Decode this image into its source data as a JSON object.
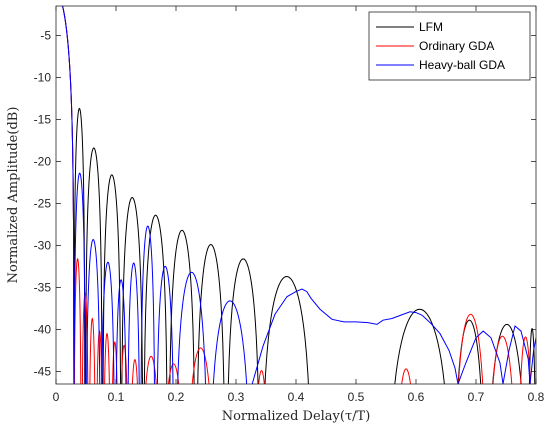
{
  "chart_data": {
    "type": "line",
    "title": "",
    "xlabel": "Normalized Delay(τ/T)",
    "ylabel": "Normalized Amplitude(dB)",
    "xlim": [
      0,
      0.8
    ],
    "ylim": [
      -46.5,
      -1.5
    ],
    "xticks": [
      0,
      0.1,
      0.2,
      0.3,
      0.4,
      0.5,
      0.6,
      0.7,
      0.8
    ],
    "xtick_labels": [
      "0",
      "0.1",
      "0.2",
      "0.3",
      "0.4",
      "0.5",
      "0.6",
      "0.7",
      "0.8"
    ],
    "yticks": [
      -5,
      -10,
      -15,
      -20,
      -25,
      -30,
      -35,
      -40,
      -45
    ],
    "ytick_labels": [
      "-5",
      "-10",
      "-15",
      "-20",
      "-25",
      "-30",
      "-35",
      "-40",
      "-45"
    ],
    "grid": false,
    "legend_position": "top-right",
    "series": [
      {
        "name": "LFM",
        "color": "#000000",
        "lobes": [
          [
            0.0,
            0.03,
            0
          ],
          [
            0.03,
            0.048,
            -13.7
          ],
          [
            0.049,
            0.077,
            -18.4
          ],
          [
            0.078,
            0.108,
            -21.6
          ],
          [
            0.109,
            0.145,
            -24.3
          ],
          [
            0.146,
            0.186,
            -26.4
          ],
          [
            0.188,
            0.232,
            -28.2
          ],
          [
            0.234,
            0.282,
            -29.9
          ],
          [
            0.284,
            0.34,
            -31.6
          ],
          [
            0.342,
            0.427,
            -33.7
          ],
          [
            0.552,
            0.66,
            -37.6
          ],
          [
            0.663,
            0.715,
            -38.9
          ],
          [
            0.718,
            0.785,
            -39.4
          ],
          [
            0.787,
            0.8,
            -39.9
          ]
        ],
        "points": []
      },
      {
        "name": "Ordinary GDA",
        "color": "#ff0000",
        "lobes": [
          [
            0.0,
            0.03,
            0
          ],
          [
            0.03,
            0.042,
            -31.6
          ],
          [
            0.043,
            0.054,
            -35.7
          ],
          [
            0.055,
            0.066,
            -38.7
          ],
          [
            0.067,
            0.078,
            -40.2
          ],
          [
            0.079,
            0.091,
            -40.5
          ],
          [
            0.092,
            0.104,
            -41.5
          ],
          [
            0.106,
            0.121,
            -41.9
          ],
          [
            0.123,
            0.14,
            -43.6
          ],
          [
            0.142,
            0.175,
            -43.2
          ],
          [
            0.177,
            0.215,
            -44.1
          ],
          [
            0.217,
            0.265,
            -42.2
          ],
          [
            0.33,
            0.355,
            -44.9
          ],
          [
            0.565,
            0.602,
            -44.7
          ],
          [
            0.664,
            0.718,
            -38.2
          ],
          [
            0.72,
            0.768,
            -40.8
          ],
          [
            0.77,
            0.795,
            -40.9
          ]
        ],
        "points": []
      },
      {
        "name": "Heavy-ball GDA",
        "color": "#0000ff",
        "lobes": [
          [
            0.0,
            0.03,
            0
          ],
          [
            0.03,
            0.049,
            -21.4
          ],
          [
            0.05,
            0.074,
            -29.3
          ],
          [
            0.075,
            0.098,
            -32.0
          ],
          [
            0.099,
            0.118,
            -34.1
          ],
          [
            0.119,
            0.14,
            -32.1
          ],
          [
            0.141,
            0.165,
            -27.7
          ],
          [
            0.167,
            0.197,
            -32.5
          ],
          [
            0.199,
            0.253,
            -33.2
          ],
          [
            0.255,
            0.325,
            -36.6
          ],
          [
            0.8,
            0.8,
            -41.0
          ]
        ],
        "points": [
          [
            0.327,
            -46.5
          ],
          [
            0.345,
            -42.0
          ],
          [
            0.365,
            -38.2
          ],
          [
            0.385,
            -36.1
          ],
          [
            0.4,
            -35.5
          ],
          [
            0.41,
            -35.2
          ],
          [
            0.418,
            -35.5
          ],
          [
            0.425,
            -36.3
          ],
          [
            0.44,
            -37.6
          ],
          [
            0.46,
            -38.8
          ],
          [
            0.48,
            -39.1
          ],
          [
            0.5,
            -39.1
          ],
          [
            0.52,
            -39.2
          ],
          [
            0.535,
            -39.4
          ],
          [
            0.545,
            -38.9
          ],
          [
            0.56,
            -38.7
          ],
          [
            0.575,
            -38.3
          ],
          [
            0.59,
            -37.9
          ],
          [
            0.6,
            -38.0
          ],
          [
            0.61,
            -38.3
          ],
          [
            0.625,
            -39.3
          ],
          [
            0.64,
            -40.5
          ],
          [
            0.655,
            -42.5
          ],
          [
            0.665,
            -44.6
          ],
          [
            0.67,
            -46.5
          ],
          [
            0.683,
            -44.0
          ],
          [
            0.7,
            -41.0
          ],
          [
            0.712,
            -40.2
          ],
          [
            0.725,
            -41.0
          ],
          [
            0.74,
            -44.0
          ],
          [
            0.745,
            -46.5
          ],
          [
            0.755,
            -42.5
          ],
          [
            0.765,
            -39.6
          ],
          [
            0.775,
            -40.2
          ],
          [
            0.787,
            -43.5
          ],
          [
            0.79,
            -46.5
          ],
          [
            0.796,
            -42.5
          ],
          [
            0.8,
            -41.0
          ]
        ]
      }
    ]
  }
}
